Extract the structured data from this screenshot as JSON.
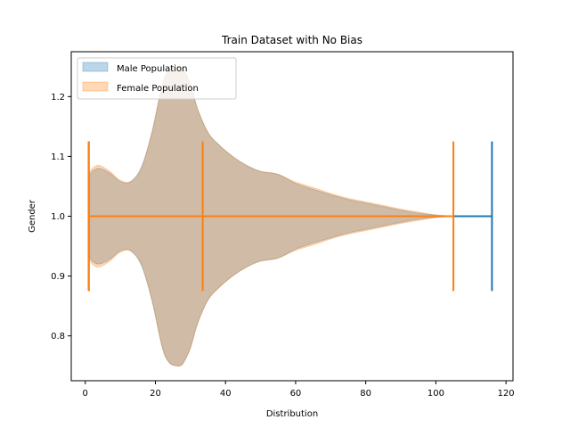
{
  "chart_data": {
    "type": "violin",
    "title": "Train Dataset with No Bias",
    "xlabel": "Distribution",
    "ylabel": "Gender",
    "xlim": [
      -4,
      122
    ],
    "ylim": [
      0.725,
      1.275
    ],
    "xticks": [
      0,
      20,
      40,
      60,
      80,
      100,
      120
    ],
    "yticks": [
      0.8,
      0.9,
      1.0,
      1.1,
      1.2
    ],
    "ytick_labels": [
      "0.8",
      "0.9",
      "1.0",
      "1.1",
      "1.2"
    ],
    "grid": false,
    "legend_position": "top-left",
    "series": [
      {
        "name": "Male Population",
        "color": "#1f77b4",
        "fill_opacity": 0.3,
        "position": 1.0,
        "min": 1,
        "max": 116,
        "median": null,
        "profile": {
          "x": [
            1,
            2,
            4,
            7,
            10,
            13,
            16,
            19,
            22,
            24,
            26,
            27,
            28,
            30,
            32,
            35,
            38,
            42,
            46,
            50,
            55,
            60,
            65,
            70,
            75,
            80,
            85,
            90,
            95,
            100,
            105,
            110,
            116
          ],
          "half_width": [
            0.065,
            0.075,
            0.08,
            0.072,
            0.058,
            0.058,
            0.082,
            0.14,
            0.22,
            0.245,
            0.25,
            0.25,
            0.245,
            0.22,
            0.18,
            0.14,
            0.12,
            0.1,
            0.085,
            0.075,
            0.07,
            0.055,
            0.045,
            0.036,
            0.028,
            0.022,
            0.016,
            0.01,
            0.005,
            0.002,
            0.0005,
            0.0002,
            0.0
          ]
        }
      },
      {
        "name": "Female Population",
        "color": "#ff7f0e",
        "fill_opacity": 0.3,
        "position": 1.0,
        "min": 1,
        "max": 105,
        "median": 33.5,
        "profile": {
          "x": [
            1,
            2,
            4,
            7,
            10,
            13,
            16,
            19,
            22,
            24,
            26,
            27,
            28,
            30,
            32,
            35,
            38,
            42,
            46,
            50,
            55,
            60,
            65,
            70,
            75,
            80,
            85,
            90,
            95,
            100,
            103,
            105
          ],
          "half_width": [
            0.07,
            0.08,
            0.085,
            0.075,
            0.06,
            0.058,
            0.08,
            0.14,
            0.22,
            0.245,
            0.25,
            0.25,
            0.245,
            0.22,
            0.18,
            0.14,
            0.12,
            0.1,
            0.085,
            0.075,
            0.07,
            0.057,
            0.048,
            0.038,
            0.03,
            0.024,
            0.018,
            0.012,
            0.007,
            0.002,
            0.0005,
            0.0
          ]
        }
      }
    ]
  }
}
